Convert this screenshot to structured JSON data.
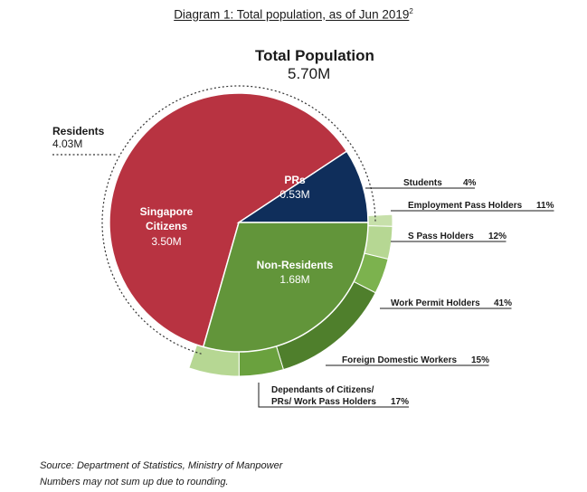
{
  "caption": {
    "text": "Diagram 1: Total population, as of Jun 2019",
    "footnote": "2"
  },
  "chart_data": {
    "type": "pie",
    "title": "Total Population",
    "total": "5.70M",
    "slices": [
      {
        "name": "Singapore Citizens",
        "value": 3.5,
        "label": "3.50M",
        "color": "#b83341"
      },
      {
        "name": "PRs",
        "value": 0.53,
        "label": "0.53M",
        "color": "#0f2e5b"
      },
      {
        "name": "Non-Residents",
        "value": 1.68,
        "label": "1.68M",
        "color": "#62953a"
      }
    ],
    "groups": [
      {
        "name": "Residents",
        "value": 4.03,
        "label": "4.03M"
      }
    ],
    "breakdown": {
      "of": "Non-Residents",
      "items": [
        {
          "name": "Students",
          "percent": 4,
          "label": "4%",
          "color": "#c7e0aa"
        },
        {
          "name": "Employment Pass Holders",
          "percent": 11,
          "label": "11%",
          "color": "#b6d793"
        },
        {
          "name": "S Pass Holders",
          "percent": 12,
          "label": "12%",
          "color": "#7cb24e"
        },
        {
          "name": "Work Permit Holders",
          "percent": 41,
          "label": "41%",
          "color": "#4f7f2c"
        },
        {
          "name": "Foreign Domestic Workers",
          "percent": 15,
          "label": "15%",
          "color": "#6aa13e"
        },
        {
          "name": "Dependants of Citizens/ PRs/ Work Pass Holders",
          "percent": 17,
          "label": "17%",
          "color": "#b6d793"
        }
      ]
    }
  },
  "source": {
    "line1": "Source: Department of Statistics, Ministry of Manpower",
    "line2": "Numbers may not sum up due to rounding."
  }
}
